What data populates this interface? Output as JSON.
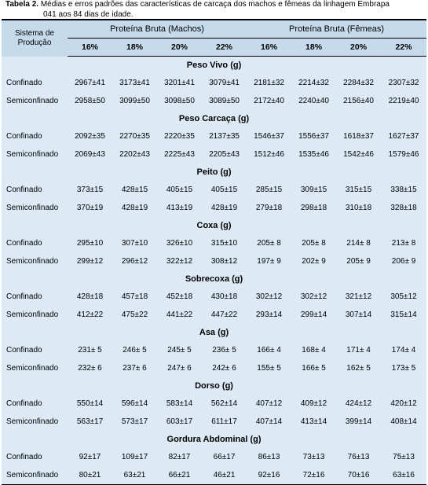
{
  "caption": {
    "label": "Tabela 2.",
    "line1": "Médias e erros padrões das características de carcaça dos machos e fêmeas da linhagem Embrapa",
    "line2": "041 aos 84 dias de idade."
  },
  "header": {
    "system_label_line1": "Sistema de",
    "system_label_line2": "Produção",
    "group_machos": "Proteína Bruta (Machos)",
    "group_femeas": "Proteína Bruta (Fêmeas)",
    "levels": [
      "16%",
      "18%",
      "20%",
      "22%",
      "16%",
      "18%",
      "20%",
      "22%"
    ]
  },
  "sections": [
    {
      "title": "Peso Vivo (g)",
      "rows": [
        {
          "label": "Confinado",
          "values": [
            "2967±41",
            "3173±41",
            "3201±41",
            "3079±41",
            "2181±32",
            "2214±32",
            "2284±32",
            "2307±32"
          ]
        },
        {
          "label": "Semiconfinado",
          "values": [
            "2958±50",
            "3099±50",
            "3098±50",
            "3089±50",
            "2172±40",
            "2240±40",
            "2156±40",
            "2219±40"
          ]
        }
      ]
    },
    {
      "title": "Peso Carcaça (g)",
      "rows": [
        {
          "label": "Confinado",
          "values": [
            "2092±35",
            "2270±35",
            "2220±35",
            "2137±35",
            "1546±37",
            "1556±37",
            "1618±37",
            "1627±37"
          ]
        },
        {
          "label": "Semiconfinado",
          "values": [
            "2069±43",
            "2202±43",
            "2225±43",
            "2205±43",
            "1512±46",
            "1535±46",
            "1542±46",
            "1579±46"
          ]
        }
      ]
    },
    {
      "title": "Peito (g)",
      "rows": [
        {
          "label": "Confinado",
          "values": [
            "373±15",
            "428±15",
            "405±15",
            "405±15",
            "285±15",
            "309±15",
            "315±15",
            "338±15"
          ]
        },
        {
          "label": "Semiconfinado",
          "values": [
            "370±19",
            "428±19",
            "413±19",
            "428±19",
            "279±18",
            "298±18",
            "310±18",
            "328±18"
          ]
        }
      ]
    },
    {
      "title": "Coxa (g)",
      "rows": [
        {
          "label": "Confinado",
          "values": [
            "295±10",
            "307±10",
            "326±10",
            "315±10",
            "205± 8",
            "205± 8",
            "214± 8",
            "213± 8"
          ]
        },
        {
          "label": "Semiconfinado",
          "values": [
            "299±12",
            "296±12",
            "322±12",
            "308±12",
            "197± 9",
            "202± 9",
            "205± 9",
            "206± 9"
          ]
        }
      ]
    },
    {
      "title": "Sobrecoxa (g)",
      "rows": [
        {
          "label": "Confinado",
          "values": [
            "428±18",
            "457±18",
            "452±18",
            "430±18",
            "302±12",
            "302±12",
            "321±12",
            "305±12"
          ]
        },
        {
          "label": "Semiconfinado",
          "values": [
            "412±22",
            "475±22",
            "441±22",
            "447±22",
            "293±14",
            "299±14",
            "307±14",
            "315±14"
          ]
        }
      ]
    },
    {
      "title": "Asa (g)",
      "rows": [
        {
          "label": "Confinado",
          "values": [
            "231± 5",
            "246± 5",
            "245± 5",
            "236± 5",
            "166± 4",
            "168± 4",
            "171± 4",
            "174± 4"
          ]
        },
        {
          "label": "Semiconfinado",
          "values": [
            "232± 6",
            "237± 6",
            "247± 6",
            "242± 6",
            "155± 5",
            "166± 5",
            "162± 5",
            "173± 5"
          ]
        }
      ]
    },
    {
      "title": "Dorso (g)",
      "rows": [
        {
          "label": "Confinado",
          "values": [
            "550±14",
            "596±14",
            "583±14",
            "562±14",
            "407±12",
            "409±12",
            "424±12",
            "420±12"
          ]
        },
        {
          "label": "Semiconfinado",
          "values": [
            "563±17",
            "573±17",
            "603±17",
            "611±17",
            "407±14",
            "413±14",
            "399±14",
            "408±14"
          ]
        }
      ]
    },
    {
      "title": "Gordura Abdominal (g)",
      "rows": [
        {
          "label": "Confinado",
          "values": [
            "92±17",
            "109±17",
            "82±17",
            "66±17",
            "86±13",
            "73±13",
            "76±13",
            "75±13"
          ]
        },
        {
          "label": "Semiconfinado",
          "values": [
            "80±21",
            "63±21",
            "66±21",
            "46±21",
            "92±16",
            "72±16",
            "70±16",
            "63±16"
          ]
        }
      ]
    }
  ]
}
